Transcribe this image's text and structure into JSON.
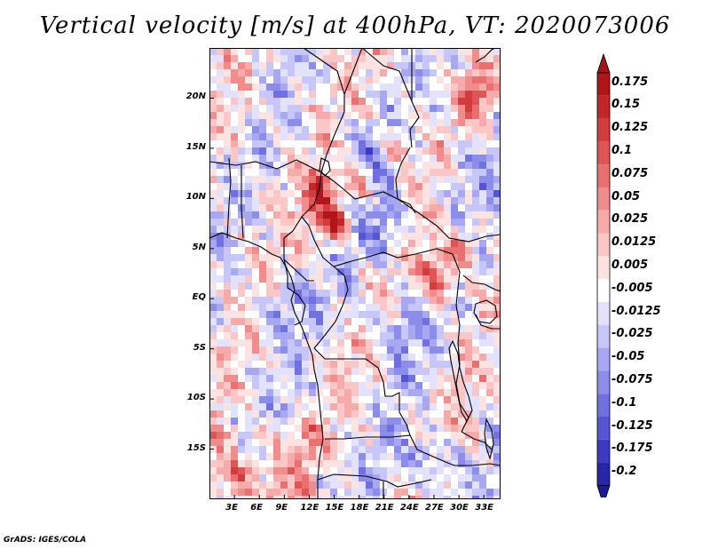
{
  "title": "Vertical velocity [m/s] at 400hPa, VT: 2020073006",
  "credit": "GrADS: IGES/COLA",
  "map": {
    "lon_range": [
      0,
      35
    ],
    "lat_range": [
      -20,
      25
    ],
    "lat_labels": [
      {
        "lat": 20,
        "text": "20N"
      },
      {
        "lat": 15,
        "text": "15N"
      },
      {
        "lat": 10,
        "text": "10N"
      },
      {
        "lat": 5,
        "text": "5N"
      },
      {
        "lat": 0,
        "text": "EQ"
      },
      {
        "lat": -5,
        "text": "5S"
      },
      {
        "lat": -10,
        "text": "10S"
      },
      {
        "lat": -15,
        "text": "15S"
      }
    ],
    "lon_labels": [
      {
        "lon": 3,
        "text": "3E"
      },
      {
        "lon": 6,
        "text": "6E"
      },
      {
        "lon": 9,
        "text": "9E"
      },
      {
        "lon": 12,
        "text": "12E"
      },
      {
        "lon": 15,
        "text": "15E"
      },
      {
        "lon": 18,
        "text": "18E"
      },
      {
        "lon": 21,
        "text": "21E"
      },
      {
        "lon": 24,
        "text": "24E"
      },
      {
        "lon": 27,
        "text": "27E"
      },
      {
        "lon": 30,
        "text": "30E"
      },
      {
        "lon": 33,
        "text": "33E"
      }
    ],
    "hotspots": [
      {
        "lon": 14.5,
        "lat": 7.8,
        "strength": 1.0
      },
      {
        "lon": 12.8,
        "lat": 11.0,
        "strength": 0.75
      },
      {
        "lon": 17.5,
        "lat": 11.8,
        "strength": 0.6
      },
      {
        "lon": 22.0,
        "lat": 15.5,
        "strength": 0.55
      },
      {
        "lon": 31.5,
        "lat": 20.5,
        "strength": 0.65
      },
      {
        "lon": 27.5,
        "lat": 2.0,
        "strength": 0.7
      },
      {
        "lon": 30.0,
        "lat": 5.5,
        "strength": 0.6
      },
      {
        "lon": 3.0,
        "lat": -17.5,
        "strength": 0.45
      },
      {
        "lon": 26.0,
        "lat": 3.8,
        "strength": 0.5
      }
    ],
    "coldspots": [
      {
        "lon": 18.5,
        "lat": 15.0,
        "strength": 0.6
      },
      {
        "lon": 20.5,
        "lat": 7.0,
        "strength": 0.6
      },
      {
        "lon": 22.0,
        "lat": -3.0,
        "strength": 0.55
      },
      {
        "lon": 26.0,
        "lat": -16.0,
        "strength": 0.6
      },
      {
        "lon": 8.0,
        "lat": -1.0,
        "strength": 0.45
      },
      {
        "lon": 30.5,
        "lat": 13.0,
        "strength": 0.45
      }
    ]
  },
  "colorbar": {
    "levels": [
      {
        "label": "0.175",
        "color": "#b0151a"
      },
      {
        "label": "0.15",
        "color": "#c3262a"
      },
      {
        "label": "0.125",
        "color": "#d23c3c"
      },
      {
        "label": "0.1",
        "color": "#df5555"
      },
      {
        "label": "0.075",
        "color": "#e97070"
      },
      {
        "label": "0.05",
        "color": "#f08c8c"
      },
      {
        "label": "0.025",
        "color": "#f6aaaa"
      },
      {
        "label": "0.0125",
        "color": "#fac6c6"
      },
      {
        "label": "0.005",
        "color": "#fde2e2"
      },
      {
        "label": "-0.005",
        "color": "#ffffff"
      },
      {
        "label": "-0.0125",
        "color": "#e2e2fd"
      },
      {
        "label": "-0.025",
        "color": "#c6c6f8"
      },
      {
        "label": "-0.05",
        "color": "#a8a8f2"
      },
      {
        "label": "-0.075",
        "color": "#8c8cea"
      },
      {
        "label": "-0.1",
        "color": "#7070e0"
      },
      {
        "label": "-0.125",
        "color": "#5555d4"
      },
      {
        "label": "-0.175",
        "color": "#3a3ac2"
      },
      {
        "label": "-0.2",
        "color": "#2626a8"
      }
    ],
    "top_color": "#a0141a",
    "bottom_color": "#1a1a95"
  }
}
